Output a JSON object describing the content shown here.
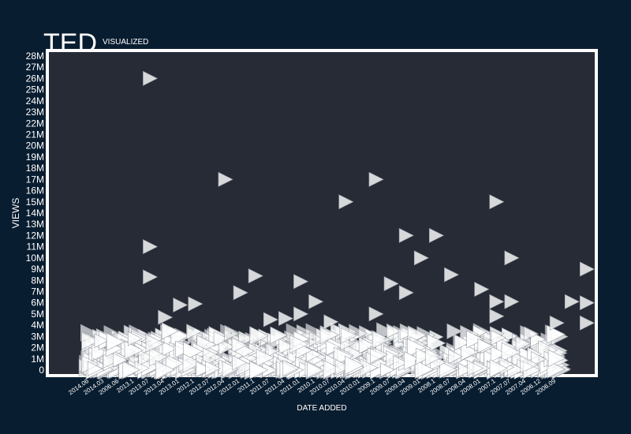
{
  "title": "TED",
  "subtitle": "VISUALIZED",
  "chart_data": {
    "type": "scatter",
    "xlabel": "DATE ADDED",
    "ylabel": "VIEWS",
    "ylim": [
      0,
      28000000
    ],
    "y_ticks": [
      "0",
      "1M",
      "2M",
      "3M",
      "4M",
      "5M",
      "6M",
      "7M",
      "8M",
      "9M",
      "10M",
      "11M",
      "12M",
      "13M",
      "14M",
      "15M",
      "16M",
      "17M",
      "18M",
      "19M",
      "20M",
      "21M",
      "22M",
      "23M",
      "24M",
      "25M",
      "26M",
      "27M",
      "28M"
    ],
    "x_ticks": [
      "2014.06",
      "2014.03",
      "2006.06",
      "2013.1",
      "2013.07",
      "2013.04",
      "2013.01",
      "2012.1",
      "2012.07",
      "2012.04",
      "2012.01",
      "2011.1",
      "2011.07",
      "2011.04",
      "2011.01",
      "2010.1",
      "2010.07",
      "2010.04",
      "2010.01",
      "2009.1",
      "2009.07",
      "2009.04",
      "2009.01",
      "2008.1",
      "2008.07",
      "2008.04",
      "2008.01",
      "2007.1",
      "2007.07",
      "2007.04",
      "2006.12",
      "2006.09"
    ],
    "marker": "right-triangle",
    "colors": {
      "background": "#091d30",
      "plot": "#262b36",
      "frame": "#ffffff",
      "marker": "#ffffff"
    },
    "grid": false,
    "legend": "none",
    "note_x_order": "talks ordered by date added, newest first",
    "points": [
      {
        "x": "2006.06",
        "y": 26000000
      },
      {
        "x": "2006.06",
        "y": 11000000
      },
      {
        "x": "2006.06",
        "y": 8300000
      },
      {
        "x": "2012.1",
        "y": 17000000
      },
      {
        "x": "2010.1",
        "y": 15000000
      },
      {
        "x": "2010.04",
        "y": 17000000
      },
      {
        "x": "2009.1",
        "y": 12000000
      },
      {
        "x": "2009.04",
        "y": 12000000
      },
      {
        "x": "2009.07",
        "y": 10000000
      },
      {
        "x": "2009.01",
        "y": 8500000
      },
      {
        "x": "2008.04",
        "y": 15000000
      },
      {
        "x": "2008.01",
        "y": 10000000
      },
      {
        "x": "2006.09",
        "y": 9000000
      },
      {
        "x": "2012.04",
        "y": 8400000
      },
      {
        "x": "2011.07",
        "y": 7900000
      },
      {
        "x": "2012.07",
        "y": 6900000
      },
      {
        "x": "2010.01",
        "y": 7700000
      },
      {
        "x": "2009.1",
        "y": 6900000
      },
      {
        "x": "2008.07",
        "y": 7200000
      },
      {
        "x": "2008.04",
        "y": 6100000
      },
      {
        "x": "2008.01",
        "y": 6100000
      },
      {
        "x": "2006.12",
        "y": 6100000
      },
      {
        "x": "2006.09",
        "y": 6000000
      },
      {
        "x": "2011.04",
        "y": 6100000
      },
      {
        "x": "2010.04",
        "y": 5000000
      },
      {
        "x": "2013.04",
        "y": 5900000
      },
      {
        "x": "2013.07",
        "y": 5800000
      },
      {
        "x": "2013.1",
        "y": 4700000
      },
      {
        "x": "2008.04",
        "y": 4800000
      },
      {
        "x": "2007.04",
        "y": 4200000
      },
      {
        "x": "2006.09",
        "y": 4200000
      },
      {
        "x": "2011.1",
        "y": 4600000
      },
      {
        "x": "2011.07",
        "y": 5000000
      },
      {
        "x": "2012.01",
        "y": 4500000
      },
      {
        "x": "2011.01",
        "y": 4300000
      },
      {
        "x": "2014.03",
        "y": 2800000
      },
      {
        "x": "2014.06",
        "y": 900000
      }
    ]
  }
}
